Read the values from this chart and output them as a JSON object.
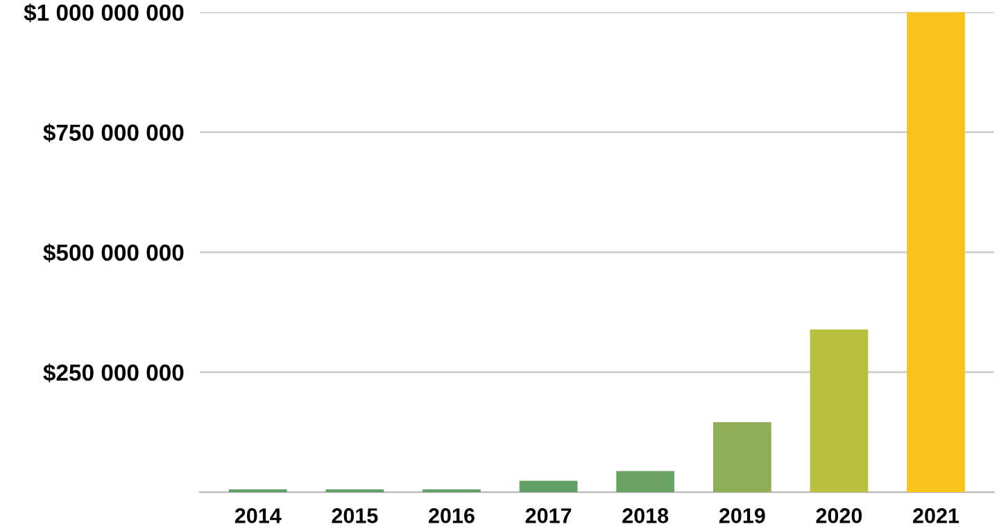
{
  "chart_data": {
    "type": "bar",
    "categories": [
      "2014",
      "2015",
      "2016",
      "2017",
      "2018",
      "2019",
      "2020",
      "2021"
    ],
    "values": [
      6000000,
      6000000,
      6000000,
      24000000,
      44000000,
      146000000,
      339000000,
      1000000000
    ],
    "colors": [
      "#5f9f68",
      "#5f9f68",
      "#5f9f68",
      "#62a066",
      "#6aa263",
      "#8fae55",
      "#b9c03f",
      "#f8c41c"
    ],
    "ylim": [
      0,
      1000000000
    ],
    "yticks": [
      {
        "value": 0,
        "label": null
      },
      {
        "value": 250000000,
        "label": "$250 000 000"
      },
      {
        "value": 500000000,
        "label": "$500 000 000"
      },
      {
        "value": 750000000,
        "label": "$750 000 000"
      },
      {
        "value": 1000000000,
        "label": "$1 000 000 000"
      }
    ],
    "grid": "y"
  }
}
